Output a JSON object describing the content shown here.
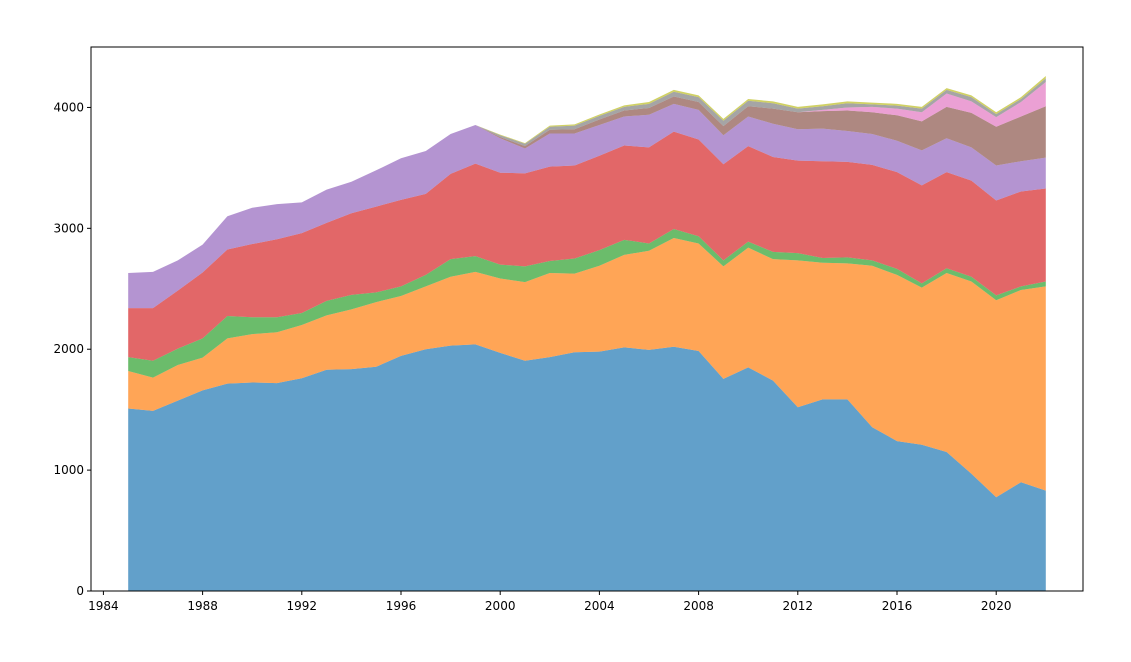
{
  "chart_data": {
    "type": "area",
    "stacked": true,
    "title": "",
    "xlabel": "",
    "ylabel": "",
    "legend": "none",
    "grid": false,
    "xlim": [
      1983.5,
      2023.5
    ],
    "ylim": [
      0,
      4500
    ],
    "xticks": [
      1984,
      1988,
      1992,
      1996,
      2000,
      2004,
      2008,
      2012,
      2016,
      2020
    ],
    "yticks": [
      0,
      1000,
      2000,
      3000,
      4000
    ],
    "x": [
      1985,
      1986,
      1987,
      1988,
      1989,
      1990,
      1991,
      1992,
      1993,
      1994,
      1995,
      1996,
      1997,
      1998,
      1999,
      2000,
      2001,
      2002,
      2003,
      2004,
      2005,
      2006,
      2007,
      2008,
      2009,
      2010,
      2011,
      2012,
      2013,
      2014,
      2015,
      2016,
      2017,
      2018,
      2019,
      2020,
      2021,
      2022
    ],
    "series": [
      {
        "color": "#1f77b4",
        "values": [
          1510,
          1490,
          1575,
          1660,
          1715,
          1725,
          1720,
          1760,
          1830,
          1835,
          1855,
          1945,
          2000,
          2030,
          2040,
          1970,
          1905,
          1935,
          1975,
          1980,
          2015,
          1995,
          2020,
          1985,
          1755,
          1850,
          1740,
          1520,
          1585,
          1585,
          1355,
          1240,
          1210,
          1150,
          970,
          775,
          900,
          830
        ]
      },
      {
        "color": "#ff7f0e",
        "values": [
          310,
          275,
          295,
          270,
          375,
          400,
          420,
          440,
          450,
          495,
          535,
          495,
          520,
          570,
          600,
          615,
          650,
          695,
          650,
          710,
          765,
          820,
          900,
          890,
          930,
          990,
          1005,
          1215,
          1130,
          1125,
          1335,
          1375,
          1300,
          1480,
          1590,
          1630,
          1590,
          1690
        ]
      },
      {
        "color": "#2ca02c",
        "values": [
          115,
          140,
          135,
          160,
          185,
          140,
          125,
          100,
          120,
          120,
          80,
          80,
          95,
          145,
          130,
          115,
          130,
          100,
          125,
          130,
          125,
          60,
          75,
          60,
          50,
          50,
          60,
          60,
          40,
          50,
          45,
          50,
          35,
          40,
          40,
          40,
          30,
          40
        ]
      },
      {
        "color": "#d62728",
        "values": [
          405,
          435,
          480,
          545,
          550,
          605,
          645,
          660,
          645,
          675,
          710,
          715,
          670,
          705,
          765,
          760,
          770,
          780,
          770,
          780,
          780,
          795,
          805,
          800,
          795,
          790,
          785,
          765,
          800,
          790,
          790,
          800,
          810,
          795,
          795,
          785,
          785,
          770
        ]
      },
      {
        "color": "#9467bd",
        "values": [
          290,
          300,
          250,
          230,
          275,
          300,
          290,
          255,
          275,
          260,
          300,
          345,
          355,
          330,
          320,
          285,
          205,
          275,
          265,
          255,
          240,
          270,
          230,
          245,
          240,
          245,
          275,
          260,
          270,
          255,
          255,
          260,
          290,
          280,
          275,
          290,
          250,
          255
        ]
      },
      {
        "color": "#8c564b",
        "values": [
          0,
          0,
          0,
          0,
          0,
          0,
          0,
          0,
          0,
          0,
          0,
          0,
          0,
          0,
          0,
          10,
          20,
          30,
          35,
          45,
          50,
          55,
          60,
          65,
          75,
          85,
          125,
          140,
          145,
          170,
          180,
          210,
          240,
          260,
          285,
          320,
          370,
          425
        ]
      },
      {
        "color": "#e377c2",
        "values": [
          0,
          0,
          0,
          0,
          0,
          0,
          0,
          0,
          0,
          0,
          0,
          0,
          0,
          0,
          0,
          0,
          0,
          0,
          0,
          0,
          0,
          0,
          0,
          0,
          0,
          0,
          0,
          0,
          10,
          25,
          45,
          55,
          75,
          110,
          95,
          80,
          120,
          200
        ]
      },
      {
        "color": "#7f7f7f",
        "values": [
          0,
          0,
          0,
          0,
          0,
          0,
          0,
          0,
          0,
          0,
          0,
          0,
          0,
          0,
          0,
          15,
          20,
          25,
          30,
          30,
          30,
          35,
          40,
          40,
          45,
          45,
          45,
          30,
          30,
          35,
          20,
          25,
          30,
          30,
          35,
          25,
          25,
          30
        ]
      },
      {
        "color": "#bcbd22",
        "values": [
          0,
          0,
          0,
          0,
          0,
          0,
          0,
          0,
          0,
          0,
          0,
          0,
          0,
          0,
          0,
          5,
          5,
          10,
          10,
          12,
          12,
          15,
          15,
          15,
          15,
          15,
          15,
          15,
          15,
          15,
          15,
          15,
          15,
          15,
          15,
          15,
          15,
          20
        ]
      }
    ]
  }
}
